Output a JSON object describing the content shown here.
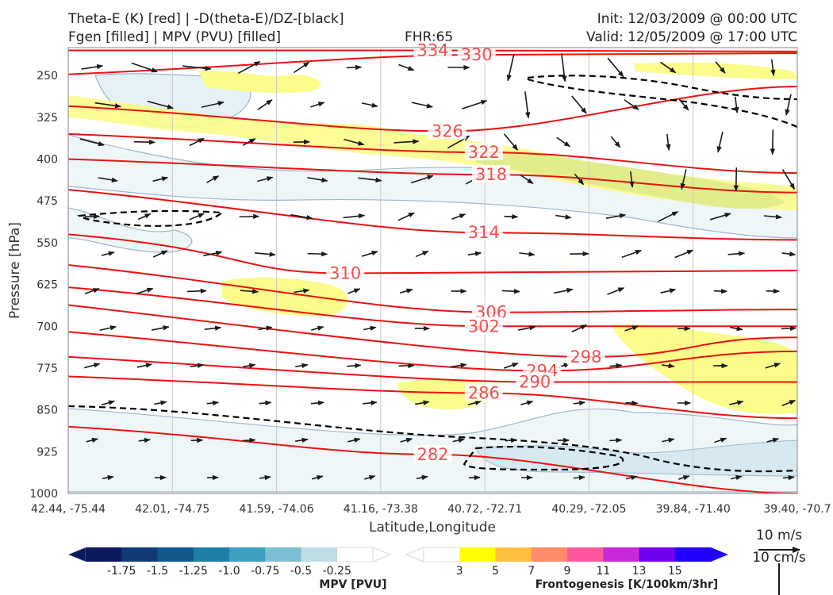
{
  "header": {
    "title_left_1": "Theta-E (K) [red] | -D(theta-E)/DZ-[black]",
    "title_left_2": "Fgen [filled] | MPV (PVU) [filled]",
    "fhr": "FHR:65",
    "init": "Init: 12/03/2009 @ 00:00 UTC",
    "valid": "Valid: 12/05/2009 @ 17:00 UTC"
  },
  "chart_data": {
    "type": "cross-section",
    "xlabel": "Latitude,Longitude",
    "ylabel": "Pressure [hPa]",
    "x_ticks": [
      "42.44, -75.44",
      "42.01, -74.75",
      "41.59, -74.06",
      "41.16, -73.38",
      "40.72, -72.71",
      "40.29, -72.05",
      "39.84, -71.40",
      "39.40, -70.7"
    ],
    "y_ticks": [
      250,
      325,
      400,
      475,
      550,
      625,
      700,
      775,
      850,
      925,
      1000
    ],
    "ylim": [
      1000,
      200
    ],
    "y_scale": "linear (inverted)",
    "theta_e_contours": [
      {
        "label": "334",
        "y_left": 205,
        "y_right": 207,
        "label_at": [
          0.5,
          205
        ]
      },
      {
        "label": "330",
        "y_left": 248,
        "y_right": 210,
        "label_at": [
          0.56,
          213
        ]
      },
      {
        "label": "326",
        "y_left": 305,
        "y_right": 270,
        "label_at": [
          0.52,
          350
        ]
      },
      {
        "label": "322",
        "y_left": 355,
        "y_right": 425,
        "label_at": [
          0.57,
          388
        ]
      },
      {
        "label": "318",
        "y_left": 400,
        "y_right": 460,
        "label_at": [
          0.58,
          428
        ]
      },
      {
        "label": "314",
        "y_left": 455,
        "y_right": 545,
        "label_at": [
          0.57,
          532
        ]
      },
      {
        "label": "310",
        "y_left": 535,
        "y_right": 600,
        "label_at": [
          0.38,
          605
        ]
      },
      {
        "label": "306",
        "y_left": 590,
        "y_right": 670,
        "label_at": [
          0.58,
          675
        ]
      },
      {
        "label": "302",
        "y_left": 630,
        "y_right": 700,
        "label_at": [
          0.57,
          700
        ]
      },
      {
        "label": "298",
        "y_left": 662,
        "y_right": 720,
        "label_at": [
          0.71,
          755
        ]
      },
      {
        "label": "294",
        "y_left": 710,
        "y_right": 745,
        "label_at": [
          0.65,
          780
        ]
      },
      {
        "label": "290",
        "y_left": 755,
        "y_right": 800,
        "label_at": [
          0.64,
          800
        ]
      },
      {
        "label": "286",
        "y_left": 790,
        "y_right": 865,
        "label_at": [
          0.57,
          820
        ]
      },
      {
        "label": "282",
        "y_left": 880,
        "y_right": 1000,
        "label_at": [
          0.5,
          930
        ]
      }
    ],
    "mpv_colorbar": {
      "title": "MPV [PVU]",
      "ticks": [
        "-1.75",
        "-1.5",
        "-1.25",
        "-1.0",
        "-0.75",
        "-0.5",
        "-0.25"
      ],
      "colors": [
        "#0a1a5c",
        "#0f3a73",
        "#13588a",
        "#1c7fa3",
        "#3fa0c0",
        "#7ebed4",
        "#bfdde6",
        "#ffffff"
      ]
    },
    "fgen_colorbar": {
      "title": "Frontogenesis [K/100km/3hr]",
      "ticks": [
        "3",
        "5",
        "7",
        "9",
        "11",
        "13",
        "15"
      ],
      "colors": [
        "#ffffff",
        "#ffff00",
        "#ffc040",
        "#ff8c6a",
        "#ff58a0",
        "#c828d8",
        "#7000ee",
        "#2000ff"
      ]
    },
    "wind_reference": {
      "label_1": "10 m/s",
      "label_2": "10 cm/s"
    }
  },
  "colors": {
    "theta_e": "#ee1010",
    "stability": "#000000",
    "wind": "#1a1a1a"
  }
}
